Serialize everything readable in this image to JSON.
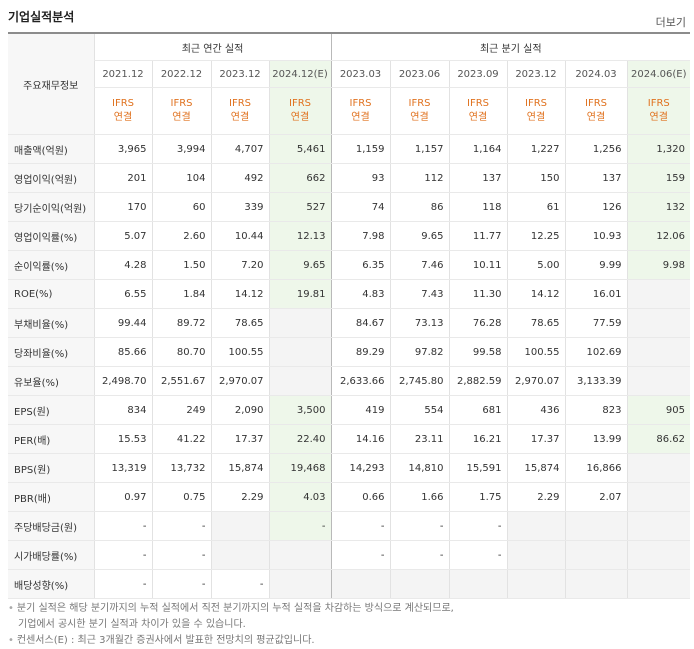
{
  "title": "기업실적분석",
  "more_label": "더보기",
  "corner_label": "주요재무정보",
  "groups": {
    "annual": "최근 연간 실적",
    "quarter": "최근 분기 실적"
  },
  "periods": [
    "2021.12",
    "2022.12",
    "2023.12",
    "2024.12(E)",
    "2023.03",
    "2023.06",
    "2023.09",
    "2023.12",
    "2024.03",
    "2024.06(E)"
  ],
  "ifrs": {
    "line1": "IFRS",
    "line2": "연결"
  },
  "rows": [
    {
      "label": "매출액(억원)",
      "values": [
        "3,965",
        "3,994",
        "4,707",
        "5,461",
        "1,159",
        "1,157",
        "1,164",
        "1,227",
        "1,256",
        "1,320"
      ]
    },
    {
      "label": "영업이익(억원)",
      "values": [
        "201",
        "104",
        "492",
        "662",
        "93",
        "112",
        "137",
        "150",
        "137",
        "159"
      ]
    },
    {
      "label": "당기순이익(억원)",
      "values": [
        "170",
        "60",
        "339",
        "527",
        "74",
        "86",
        "118",
        "61",
        "126",
        "132"
      ]
    },
    {
      "label": "영업이익률(%)",
      "values": [
        "5.07",
        "2.60",
        "10.44",
        "12.13",
        "7.98",
        "9.65",
        "11.77",
        "12.25",
        "10.93",
        "12.06"
      ]
    },
    {
      "label": "순이익률(%)",
      "values": [
        "4.28",
        "1.50",
        "7.20",
        "9.65",
        "6.35",
        "7.46",
        "10.11",
        "5.00",
        "9.99",
        "9.98"
      ]
    },
    {
      "label": "ROE(%)",
      "values": [
        "6.55",
        "1.84",
        "14.12",
        "19.81",
        "4.83",
        "7.43",
        "11.30",
        "14.12",
        "16.01",
        ""
      ]
    },
    {
      "label": "부채비율(%)",
      "values": [
        "99.44",
        "89.72",
        "78.65",
        "",
        "84.67",
        "73.13",
        "76.28",
        "78.65",
        "77.59",
        ""
      ]
    },
    {
      "label": "당좌비율(%)",
      "values": [
        "85.66",
        "80.70",
        "100.55",
        "",
        "89.29",
        "97.82",
        "99.58",
        "100.55",
        "102.69",
        ""
      ]
    },
    {
      "label": "유보율(%)",
      "values": [
        "2,498.70",
        "2,551.67",
        "2,970.07",
        "",
        "2,633.66",
        "2,745.80",
        "2,882.59",
        "2,970.07",
        "3,133.39",
        ""
      ]
    },
    {
      "label": "EPS(원)",
      "values": [
        "834",
        "249",
        "2,090",
        "3,500",
        "419",
        "554",
        "681",
        "436",
        "823",
        "905"
      ]
    },
    {
      "label": "PER(배)",
      "values": [
        "15.53",
        "41.22",
        "17.37",
        "22.40",
        "14.16",
        "23.11",
        "16.21",
        "17.37",
        "13.99",
        "86.62"
      ]
    },
    {
      "label": "BPS(원)",
      "values": [
        "13,319",
        "13,732",
        "15,874",
        "19,468",
        "14,293",
        "14,810",
        "15,591",
        "15,874",
        "16,866",
        ""
      ]
    },
    {
      "label": "PBR(배)",
      "values": [
        "0.97",
        "0.75",
        "2.29",
        "4.03",
        "0.66",
        "1.66",
        "1.75",
        "2.29",
        "2.07",
        ""
      ]
    },
    {
      "label": "주당배당금(원)",
      "values": [
        "-",
        "-",
        "",
        "-",
        "-",
        "-",
        "-",
        "",
        "",
        ""
      ]
    },
    {
      "label": "시가배당률(%)",
      "values": [
        "-",
        "-",
        "",
        "",
        "-",
        "-",
        "-",
        "",
        "",
        ""
      ]
    },
    {
      "label": "배당성향(%)",
      "values": [
        "-",
        "-",
        "-",
        "",
        "",
        "",
        "",
        "",
        "",
        ""
      ]
    }
  ],
  "notes": [
    "분기 실적은 해당 분기까지의 누적 실적에서 직전 분기까지의 누적 실적을 차감하는 방식으로 계산되므로,",
    "기업에서 공시한 분기 실적과 차이가 있을 수 있습니다.",
    "컨센서스(E) : 최근 3개월간 증권사에서 발표한 전망치의 평균값입니다."
  ]
}
